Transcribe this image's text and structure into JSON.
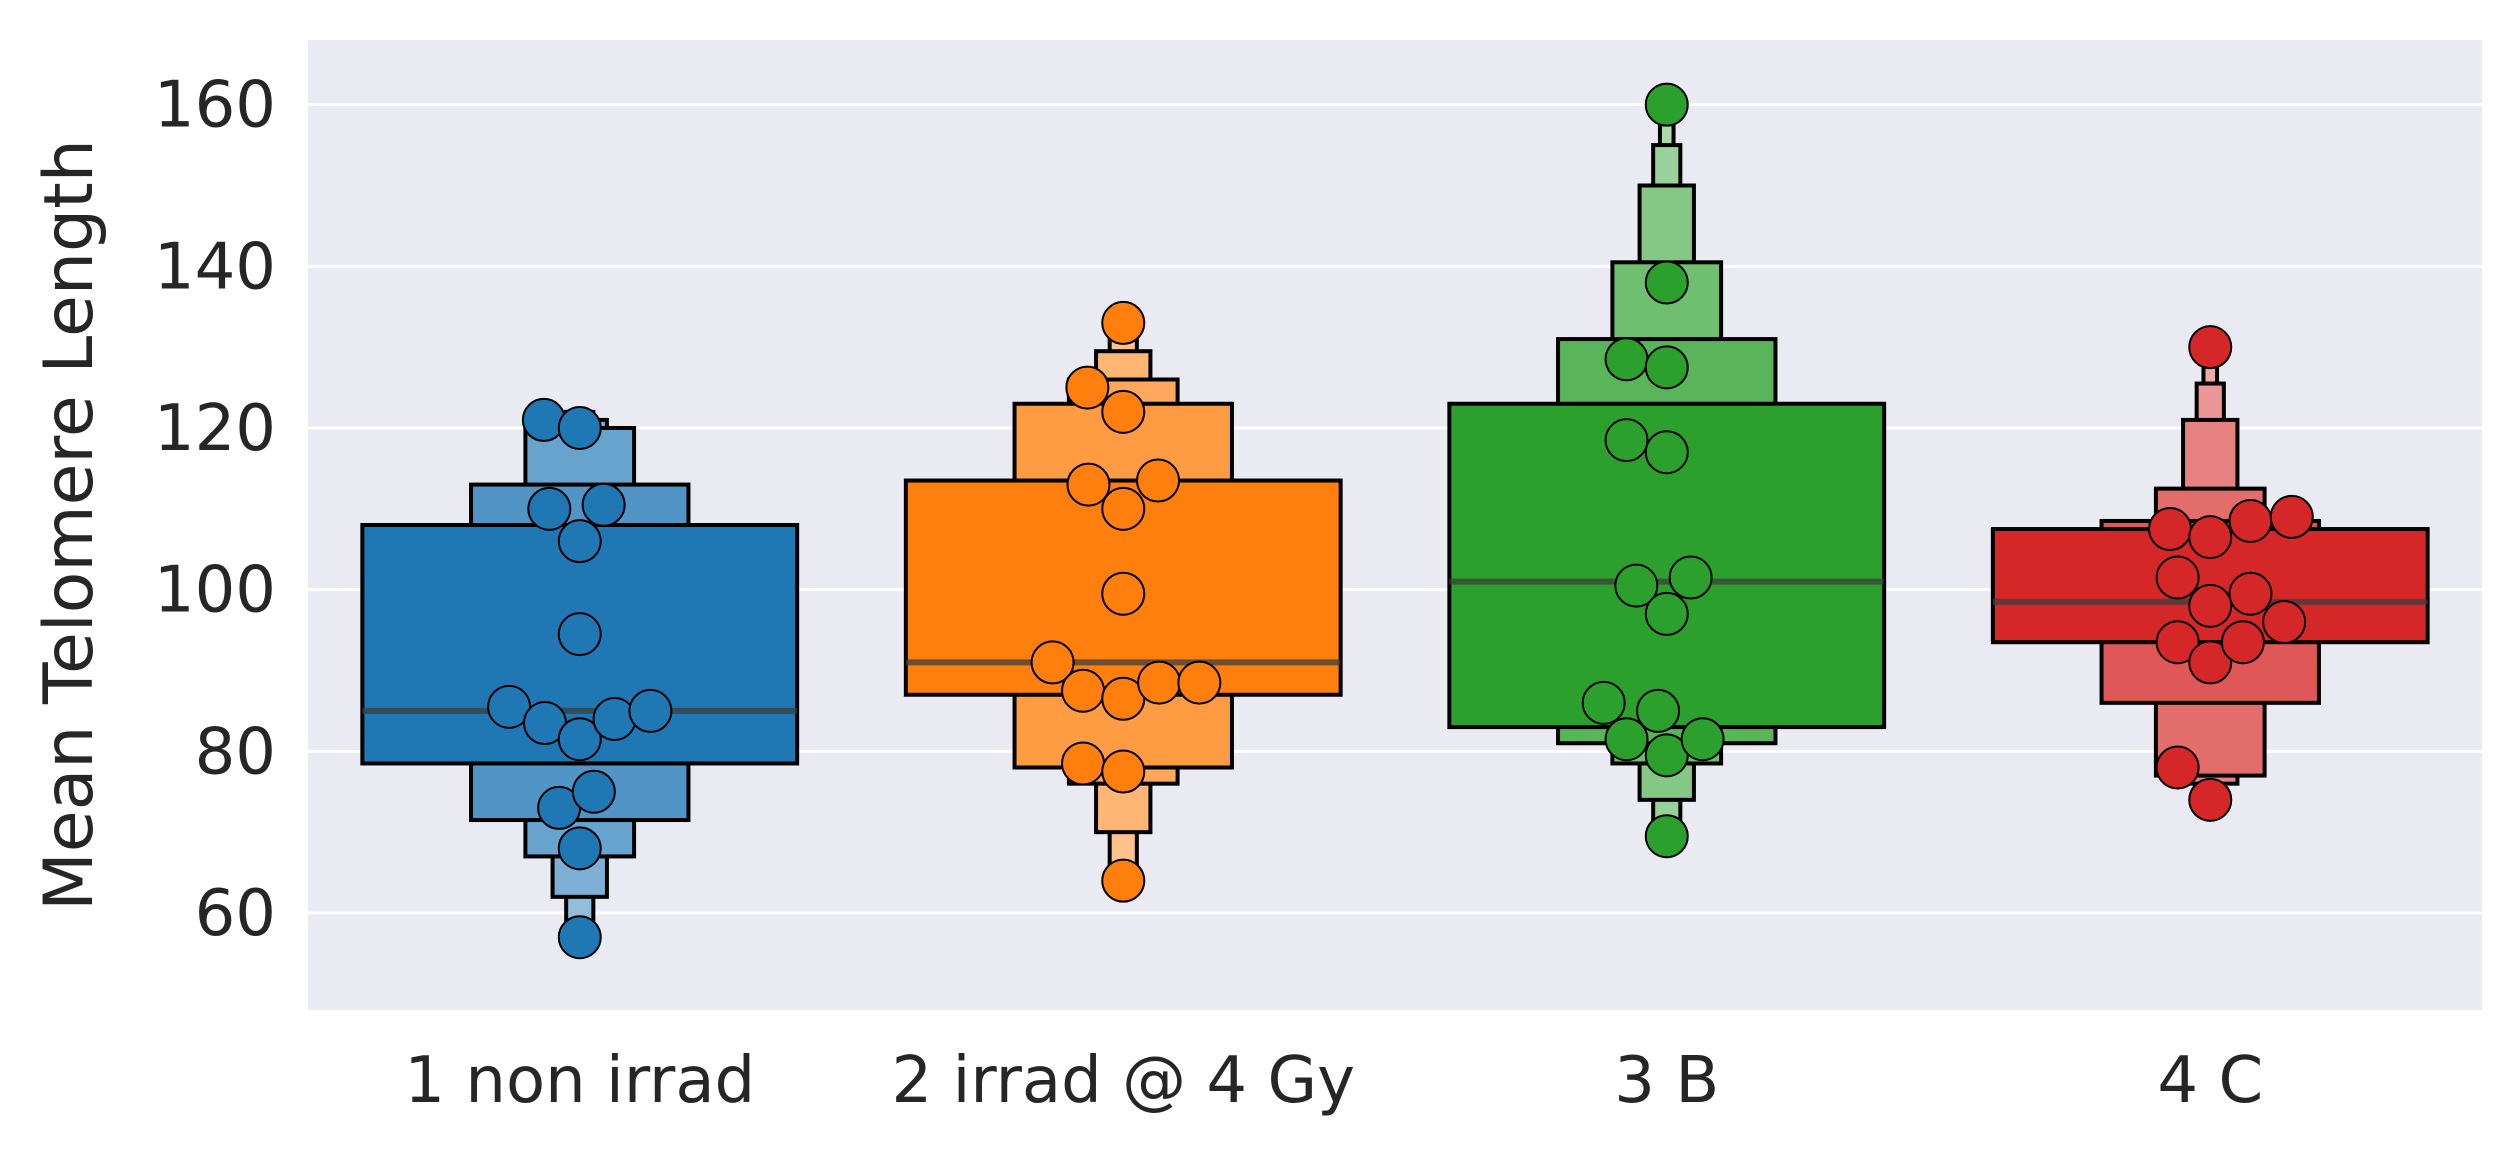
{
  "chart_data": {
    "type": "boxen",
    "title": "",
    "xlabel": "",
    "ylabel": "Mean Telomere Length",
    "ylim": [
      48,
      168
    ],
    "yticks": [
      60,
      80,
      100,
      120,
      140,
      160
    ],
    "grid": true,
    "legend": "none",
    "background": "#eaeaf2",
    "categories": [
      "1 non irrad",
      "2 irrad @ 4 Gy",
      "3 B",
      "4 C"
    ],
    "series": [
      {
        "category": "1 non irrad",
        "color": "#1f77b4",
        "median": 85,
        "boxes": [
          {
            "lo": 78.5,
            "hi": 108
          },
          {
            "lo": 71.5,
            "hi": 113
          },
          {
            "lo": 67,
            "hi": 120
          },
          {
            "lo": 62,
            "hi": 121
          },
          {
            "lo": 57,
            "hi": 122
          }
        ],
        "points": [
          {
            "v": 121,
            "o": -0.33
          },
          {
            "v": 120,
            "o": 0.0
          },
          {
            "v": 110,
            "o": -0.28
          },
          {
            "v": 110.5,
            "o": 0.22
          },
          {
            "v": 106,
            "o": 0.0
          },
          {
            "v": 94.5,
            "o": 0.0
          },
          {
            "v": 85.5,
            "o": -0.65
          },
          {
            "v": 83.5,
            "o": -0.32
          },
          {
            "v": 81.5,
            "o": 0.0
          },
          {
            "v": 84,
            "o": 0.32
          },
          {
            "v": 85,
            "o": 0.65
          },
          {
            "v": 73,
            "o": -0.19
          },
          {
            "v": 75,
            "o": 0.13
          },
          {
            "v": 68,
            "o": 0.0
          },
          {
            "v": 57,
            "o": 0.0
          }
        ]
      },
      {
        "category": "2 irrad @ 4 Gy",
        "color": "#ff7f0e",
        "median": 91,
        "boxes": [
          {
            "lo": 87,
            "hi": 113.5
          },
          {
            "lo": 78,
            "hi": 123
          },
          {
            "lo": 76,
            "hi": 126
          },
          {
            "lo": 70,
            "hi": 129.5
          },
          {
            "lo": 66,
            "hi": 133
          }
        ],
        "points": [
          {
            "v": 133,
            "o": 0.0
          },
          {
            "v": 125,
            "o": -0.33
          },
          {
            "v": 122,
            "o": 0.0
          },
          {
            "v": 113,
            "o": -0.32
          },
          {
            "v": 113.5,
            "o": 0.32
          },
          {
            "v": 110,
            "o": 0.0
          },
          {
            "v": 99.5,
            "o": 0.0
          },
          {
            "v": 91,
            "o": -0.65
          },
          {
            "v": 87.5,
            "o": -0.37
          },
          {
            "v": 86.5,
            "o": 0.0
          },
          {
            "v": 88.5,
            "o": 0.33
          },
          {
            "v": 88.5,
            "o": 0.7
          },
          {
            "v": 78.5,
            "o": -0.37
          },
          {
            "v": 77.5,
            "o": 0.0
          },
          {
            "v": 64,
            "o": 0.0
          }
        ]
      },
      {
        "category": "3 B",
        "color": "#2ca02c",
        "median": 101,
        "boxes": [
          {
            "lo": 83,
            "hi": 123
          },
          {
            "lo": 81,
            "hi": 131
          },
          {
            "lo": 78.5,
            "hi": 140.5
          },
          {
            "lo": 74,
            "hi": 150
          },
          {
            "lo": 70,
            "hi": 155
          },
          {
            "lo": 69.5,
            "hi": 160
          }
        ],
        "points": [
          {
            "v": 160,
            "o": 0.0
          },
          {
            "v": 138,
            "o": 0.0
          },
          {
            "v": 128.5,
            "o": -0.37
          },
          {
            "v": 127.5,
            "o": 0.0
          },
          {
            "v": 118.5,
            "o": -0.37
          },
          {
            "v": 117,
            "o": 0.0
          },
          {
            "v": 100.5,
            "o": -0.28
          },
          {
            "v": 101.5,
            "o": 0.22
          },
          {
            "v": 97,
            "o": 0.0
          },
          {
            "v": 86,
            "o": -0.58
          },
          {
            "v": 85,
            "o": -0.08
          },
          {
            "v": 81.5,
            "o": -0.37
          },
          {
            "v": 79.5,
            "o": 0.0
          },
          {
            "v": 81.5,
            "o": 0.33
          },
          {
            "v": 69.5,
            "o": 0.0
          }
        ]
      },
      {
        "category": "4 C",
        "color": "#d62728",
        "median": 98.5,
        "boxes": [
          {
            "lo": 93.5,
            "hi": 107.5
          },
          {
            "lo": 86,
            "hi": 108.5
          },
          {
            "lo": 77,
            "hi": 112.5
          },
          {
            "lo": 76,
            "hi": 121
          },
          {
            "lo": 74,
            "hi": 125.5
          },
          {
            "lo": 72,
            "hi": 129
          }
        ],
        "points": [
          {
            "v": 130,
            "o": 0.0
          },
          {
            "v": 107.5,
            "o": -0.37
          },
          {
            "v": 106.5,
            "o": 0.0
          },
          {
            "v": 108.5,
            "o": 0.37
          },
          {
            "v": 109,
            "o": 0.75
          },
          {
            "v": 101.5,
            "o": -0.3
          },
          {
            "v": 99.5,
            "o": 0.37
          },
          {
            "v": 98,
            "o": 0.0
          },
          {
            "v": 96,
            "o": 0.68
          },
          {
            "v": 93.5,
            "o": -0.3
          },
          {
            "v": 91,
            "o": 0.0
          },
          {
            "v": 93.5,
            "o": 0.3
          },
          {
            "v": 78,
            "o": -0.3
          },
          {
            "v": 74,
            "o": 0.0
          }
        ]
      }
    ]
  }
}
